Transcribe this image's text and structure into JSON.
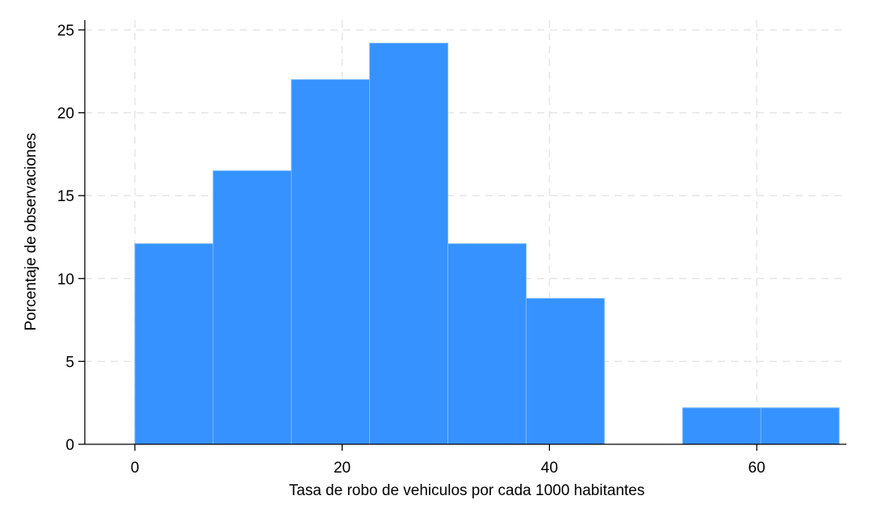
{
  "chart_data": {
    "type": "bar",
    "title": "",
    "xlabel": "Tasa de robo de vehiculos por cada 1000 habitantes",
    "ylabel": "Porcentaje de observaciones",
    "bins": [
      {
        "x0": 0.0,
        "x1": 7.55,
        "value": 12.1
      },
      {
        "x0": 7.55,
        "x1": 15.1,
        "value": 16.5
      },
      {
        "x0": 15.1,
        "x1": 22.65,
        "value": 22.0
      },
      {
        "x0": 22.65,
        "x1": 30.2,
        "value": 24.2
      },
      {
        "x0": 30.2,
        "x1": 37.75,
        "value": 12.1
      },
      {
        "x0": 37.75,
        "x1": 45.3,
        "value": 8.8
      },
      {
        "x0": 45.3,
        "x1": 52.85,
        "value": 0
      },
      {
        "x0": 52.85,
        "x1": 60.4,
        "value": 2.2
      },
      {
        "x0": 60.4,
        "x1": 67.95,
        "value": 2.2
      }
    ],
    "xlim": [
      -4.5,
      68.5
    ],
    "ylim": [
      0,
      25.5
    ],
    "xticks": [
      0,
      20,
      40,
      60
    ],
    "yticks": [
      0,
      5,
      10,
      15,
      20,
      25
    ],
    "grid": true,
    "bar_color": "#3592FF",
    "bar_edge_color": "#7BB8FF",
    "grid_color": "#E5E5E5"
  }
}
